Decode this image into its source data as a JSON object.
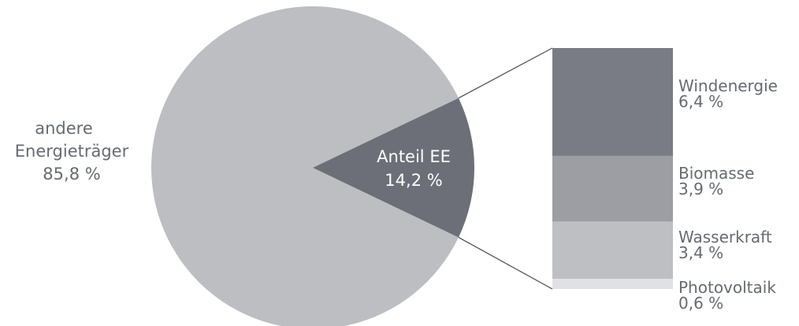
{
  "chart_data": {
    "type": "pie",
    "title": "",
    "slices": [
      {
        "label_lines": [
          "andere",
          "Energieträger"
        ],
        "value_text": "85,8 %",
        "value": 85.8,
        "color": "#bdbec2"
      },
      {
        "label_lines": [
          "Anteil EE"
        ],
        "value_text": "14,2 %",
        "value": 14.2,
        "color": "#6d6f78"
      }
    ],
    "breakdown": {
      "of": "Anteil EE",
      "type": "stacked-bar",
      "segments": [
        {
          "label": "Windenergie",
          "value_text": "6,4 %",
          "value": 6.4,
          "color": "#7a7c85"
        },
        {
          "label": "Biomasse",
          "value_text": "3,9 %",
          "value": 3.9,
          "color": "#9d9ea3"
        },
        {
          "label": "Wasserkraft",
          "value_text": "3,4 %",
          "value": 3.4,
          "color": "#bebfc3"
        },
        {
          "label": "Photovoltaik",
          "value_text": "0,6 %",
          "value": 0.6,
          "color": "#e1e1e3"
        }
      ]
    },
    "connector_color": "#4a4c52",
    "label_color": "#666a72"
  }
}
